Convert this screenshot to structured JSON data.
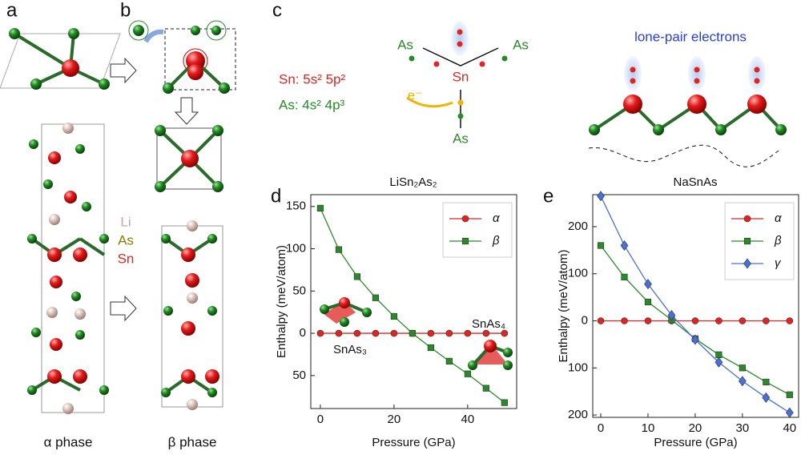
{
  "figure": {
    "panels": [
      "a",
      "b",
      "c",
      "d",
      "e"
    ],
    "alpha_phase": "α phase",
    "beta_phase": "β phase",
    "legend_atoms": [
      "Li",
      "As",
      "Sn"
    ],
    "config_sn": "Sn: 5s² 5p²",
    "config_as": "As: 4s² 4p³",
    "scheme_labels": [
      "As",
      "Sn",
      "As",
      "As"
    ],
    "electron": "e⁻",
    "lone_pair": "lone-pair electrons"
  },
  "chart_data": [
    {
      "type": "line",
      "title": "LiSn₂As₂",
      "x_label": "Pressure (GPa)",
      "y_label": "Enthalpy (meV/atom)",
      "x": [
        0,
        5,
        10,
        15,
        20,
        25,
        30,
        35,
        40,
        45,
        50
      ],
      "series": [
        {
          "name": "α",
          "color": "#e02424",
          "marker": "circle",
          "values": [
            0,
            0,
            0,
            0,
            0,
            0,
            0,
            0,
            0,
            0,
            0
          ]
        },
        {
          "name": "β",
          "color": "#2a8a2a",
          "marker": "square",
          "values": [
            148,
            99,
            67,
            42,
            20,
            0,
            -17,
            -33,
            -48,
            -65,
            -82
          ]
        }
      ],
      "xlim": [
        -2.6,
        53.3
      ],
      "xticks": [
        0,
        20,
        40
      ],
      "ylim": [
        -89,
        164
      ],
      "yticks": [
        {
          "value": -50,
          "label": "50"
        },
        0,
        50,
        100,
        150
      ],
      "legend": "upper right",
      "annotations": [
        "SnAs₃",
        "SnAs₄"
      ]
    },
    {
      "type": "line",
      "title": "NaSnAs",
      "x_label": "Pressure (GPa)",
      "y_label": "Enthalpy (meV/atom)",
      "x": [
        0,
        5,
        10,
        15,
        20,
        25,
        30,
        35,
        40
      ],
      "series": [
        {
          "name": "α",
          "color": "#e02424",
          "marker": "circle",
          "values": [
            0,
            0,
            0,
            0,
            0,
            0,
            0,
            0,
            0
          ]
        },
        {
          "name": "β",
          "color": "#2a8a2a",
          "marker": "square",
          "values": [
            160,
            93,
            40,
            2,
            -38,
            -72,
            -100,
            -130,
            -157
          ]
        },
        {
          "name": "γ",
          "color": "#4a6fd8",
          "marker": "diamond",
          "values": [
            265,
            160,
            78,
            12,
            -40,
            -88,
            -128,
            -163,
            -195
          ]
        }
      ],
      "xlim": [
        -1.7,
        41.9
      ],
      "xticks": [
        0,
        10,
        20,
        30,
        40
      ],
      "ylim": [
        -205,
        268
      ],
      "yticks": [
        {
          "value": -200,
          "label": "200"
        },
        {
          "value": -100,
          "label": "100"
        },
        0,
        100,
        200
      ],
      "legend": "upper right"
    }
  ]
}
